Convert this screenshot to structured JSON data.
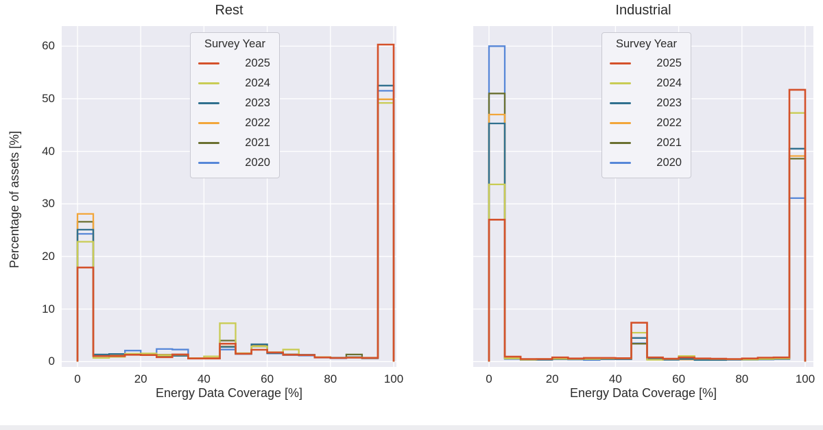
{
  "figure": {
    "x_label": "Energy Data Coverage [%]",
    "y_label": "Percentage of assets [%]",
    "x_ticks": [
      0,
      20,
      40,
      60,
      80,
      100
    ],
    "y_ticks": [
      0,
      10,
      20,
      30,
      40,
      50,
      60
    ],
    "plot_background": "#eaeaf2",
    "grid_color": "#ffffff",
    "text_color": "#2b2b2b"
  },
  "legend": {
    "title": "Survey Year",
    "entries": [
      {
        "label": "2025",
        "color": "#d4512b"
      },
      {
        "label": "2024",
        "color": "#c9cc55"
      },
      {
        "label": "2023",
        "color": "#30708e"
      },
      {
        "label": "2022",
        "color": "#f2a63b"
      },
      {
        "label": "2021",
        "color": "#6a7031"
      },
      {
        "label": "2020",
        "color": "#5787d8"
      }
    ]
  },
  "chart_data": [
    {
      "type": "line",
      "subtype": "step-histogram",
      "title": "Rest",
      "xlabel": "Energy Data Coverage [%]",
      "ylabel": "Percentage of assets [%]",
      "bin_edges": [
        0,
        5,
        10,
        15,
        20,
        25,
        30,
        35,
        40,
        45,
        50,
        55,
        60,
        65,
        70,
        75,
        80,
        85,
        90,
        95,
        100
      ],
      "xlim": [
        -5,
        101
      ],
      "ylim": [
        -1,
        63.8
      ],
      "grid": true,
      "legend_position": "upper-center-left",
      "series": [
        {
          "name": "2025",
          "color": "#d4512b",
          "values": [
            17.9,
            1.05,
            1.05,
            1.3,
            1.25,
            0.85,
            1.35,
            0.6,
            0.6,
            3.4,
            1.5,
            2.25,
            1.75,
            1.3,
            1.25,
            0.8,
            0.7,
            0.75,
            0.7,
            60.3
          ]
        },
        {
          "name": "2024",
          "color": "#c9cc55",
          "values": [
            22.8,
            0.7,
            0.9,
            1.5,
            1.55,
            1.2,
            1.3,
            0.65,
            1.0,
            7.3,
            1.6,
            2.9,
            1.8,
            2.3,
            1.25,
            0.85,
            0.7,
            0.8,
            0.65,
            49.2
          ]
        },
        {
          "name": "2023",
          "color": "#30708e",
          "values": [
            25.1,
            1.35,
            1.45,
            1.45,
            1.35,
            1.15,
            1.1,
            0.6,
            0.6,
            2.8,
            1.55,
            3.3,
            1.6,
            1.35,
            1.3,
            0.8,
            0.75,
            0.85,
            0.7,
            52.5
          ]
        },
        {
          "name": "2022",
          "color": "#f2a63b",
          "values": [
            28.1,
            1.25,
            1.3,
            1.4,
            1.3,
            1.25,
            1.3,
            0.65,
            0.65,
            2.9,
            1.5,
            2.95,
            1.7,
            1.4,
            1.25,
            0.85,
            0.7,
            0.85,
            0.75,
            49.9
          ]
        },
        {
          "name": "2021",
          "color": "#6a7031",
          "values": [
            26.6,
            1.3,
            1.35,
            1.45,
            1.35,
            1.3,
            1.35,
            0.6,
            0.65,
            4.0,
            1.55,
            3.0,
            1.7,
            1.35,
            1.25,
            0.8,
            0.7,
            1.35,
            0.7,
            49.9
          ]
        },
        {
          "name": "2020",
          "color": "#5787d8",
          "values": [
            24.3,
            1.15,
            1.3,
            2.1,
            1.45,
            2.4,
            2.3,
            0.65,
            0.6,
            2.3,
            1.45,
            2.85,
            1.55,
            1.25,
            1.15,
            0.75,
            0.65,
            0.75,
            0.6,
            51.5
          ]
        }
      ]
    },
    {
      "type": "line",
      "subtype": "step-histogram",
      "title": "Industrial",
      "xlabel": "Energy Data Coverage [%]",
      "ylabel": "Percentage of assets [%]",
      "bin_edges": [
        0,
        5,
        10,
        15,
        20,
        25,
        30,
        35,
        40,
        45,
        50,
        55,
        60,
        65,
        70,
        75,
        80,
        85,
        90,
        95,
        100
      ],
      "xlim": [
        -5,
        102.6
      ],
      "ylim": [
        -1,
        63.8
      ],
      "grid": true,
      "legend_position": "upper-center-left",
      "series": [
        {
          "name": "2025",
          "color": "#d4512b",
          "values": [
            27.0,
            0.95,
            0.5,
            0.5,
            0.8,
            0.6,
            0.7,
            0.7,
            0.65,
            7.4,
            0.8,
            0.55,
            0.8,
            0.6,
            0.55,
            0.5,
            0.6,
            0.75,
            0.8,
            51.7
          ]
        },
        {
          "name": "2024",
          "color": "#c9cc55",
          "values": [
            33.7,
            0.6,
            0.4,
            0.5,
            0.55,
            0.5,
            0.5,
            0.6,
            0.6,
            5.5,
            0.35,
            0.5,
            1.05,
            0.55,
            0.5,
            0.45,
            0.4,
            0.5,
            0.6,
            47.3
          ]
        },
        {
          "name": "2023",
          "color": "#30708e",
          "values": [
            45.3,
            0.6,
            0.4,
            0.35,
            0.5,
            0.45,
            0.45,
            0.5,
            0.5,
            4.5,
            0.55,
            0.35,
            0.5,
            0.3,
            0.3,
            0.4,
            0.4,
            0.45,
            0.5,
            40.5
          ]
        },
        {
          "name": "2022",
          "color": "#f2a63b",
          "values": [
            47.0,
            0.85,
            0.45,
            0.5,
            0.55,
            0.5,
            0.5,
            0.55,
            0.55,
            4.5,
            0.5,
            0.45,
            0.4,
            0.5,
            0.45,
            0.45,
            0.45,
            0.5,
            0.6,
            39.1
          ]
        },
        {
          "name": "2021",
          "color": "#6a7031",
          "values": [
            51.0,
            0.7,
            0.35,
            0.45,
            0.5,
            0.5,
            0.45,
            0.5,
            0.5,
            3.4,
            0.5,
            0.4,
            0.5,
            0.45,
            0.4,
            0.4,
            0.4,
            0.45,
            0.6,
            38.6
          ]
        },
        {
          "name": "2020",
          "color": "#5787d8",
          "values": [
            60.0,
            0.5,
            0.4,
            0.4,
            0.45,
            0.4,
            0.3,
            0.45,
            0.45,
            3.5,
            0.45,
            0.4,
            0.45,
            0.4,
            0.4,
            0.35,
            0.35,
            0.4,
            0.5,
            31.1
          ]
        }
      ]
    }
  ]
}
